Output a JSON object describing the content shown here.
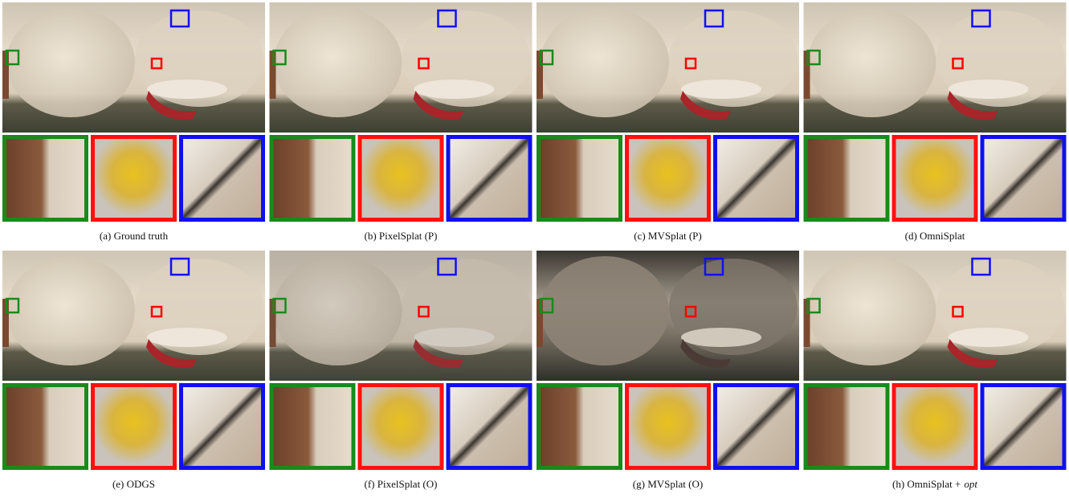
{
  "panels": [
    {
      "caption": "(a) Ground truth"
    },
    {
      "caption": "(b) PixelSplat (P)"
    },
    {
      "caption": "(c) MVSplat (P)"
    },
    {
      "caption": "(d) OmniSplat"
    },
    {
      "caption": "(e) ODGS"
    },
    {
      "caption": "(f) PixelSplat (O)"
    },
    {
      "caption": "(g) MVSplat (O)"
    },
    {
      "caption": "(h) OmniSplat +",
      "caption_italic": "opt"
    }
  ]
}
